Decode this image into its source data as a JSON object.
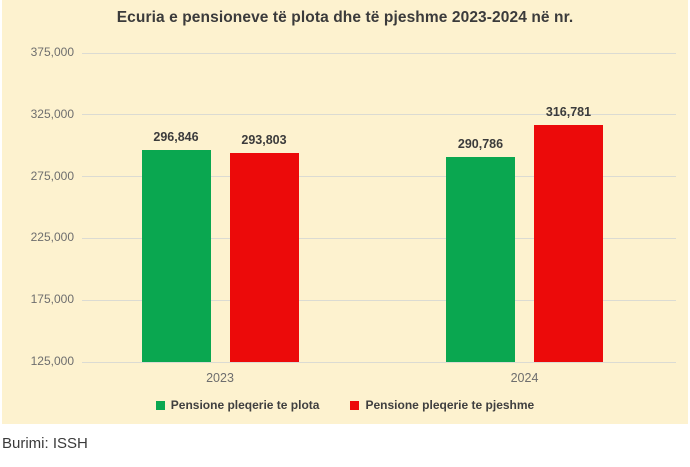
{
  "chart": {
    "title": "Ecuria e pensioneve të plota dhe të pjeshme 2023-2024 në nr.",
    "background": "#FDF2CF",
    "grid_color": "#DBDBD3",
    "title_color": "#3B3B3B",
    "axis_text_color": "#6E6E6E",
    "data_label_color": "#3B3B3B"
  },
  "chart_data": {
    "type": "bar",
    "categories": [
      "2023",
      "2024"
    ],
    "series": [
      {
        "name": "Pensione pleqerie te plota",
        "color": "#0AA750",
        "values": [
          296846,
          290786
        ],
        "value_labels": [
          "296,846",
          "290,786"
        ]
      },
      {
        "name": "Pensione pleqerie te pjeshme",
        "color": "#EC0A0A",
        "values": [
          293803,
          316781
        ],
        "value_labels": [
          "293,803",
          "316,781"
        ]
      }
    ],
    "ylim": [
      125000,
      375000
    ],
    "yticks": [
      {
        "value": 375000,
        "label": "375,000"
      },
      {
        "value": 325000,
        "label": "325,000"
      },
      {
        "value": 275000,
        "label": "275,000"
      },
      {
        "value": 225000,
        "label": "225,000"
      },
      {
        "value": 175000,
        "label": "175,000"
      },
      {
        "value": 125000,
        "label": "125,000"
      }
    ],
    "grid": true,
    "legend_position": "bottom"
  },
  "footer": {
    "source": "Burimi: ISSH"
  }
}
